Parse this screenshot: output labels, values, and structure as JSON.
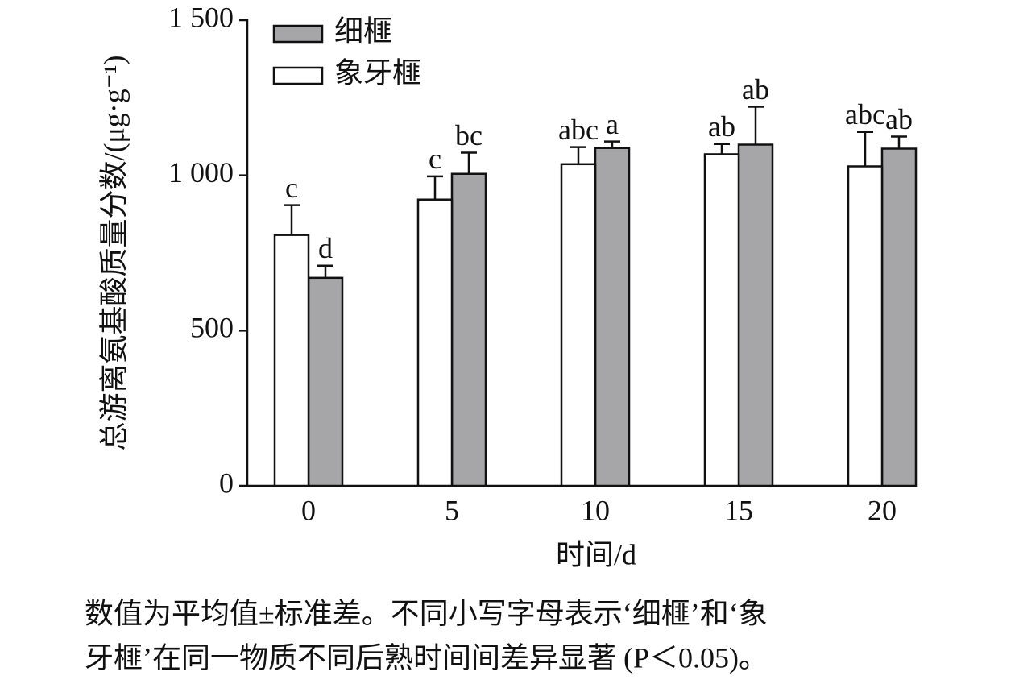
{
  "chart_data": {
    "type": "bar",
    "y_label": "总游离氨基酸质量分数/(μg·g⁻¹)",
    "x_label": "时间/d",
    "categories": [
      "0",
      "5",
      "10",
      "15",
      "20"
    ],
    "series": [
      {
        "name": "细榧",
        "color": "#a6a6a8",
        "values": [
          670,
          1005,
          1088,
          1099,
          1086
        ],
        "errors": [
          39,
          68,
          21,
          122,
          39
        ],
        "labels": [
          "d",
          "bc",
          "a",
          "ab",
          "ab"
        ]
      },
      {
        "name": "象牙榧",
        "color": "#ffffff",
        "values": [
          808,
          922,
          1036,
          1068,
          1029
        ],
        "errors": [
          96,
          75,
          55,
          33,
          111
        ],
        "labels": [
          "c",
          "c",
          "abc",
          "ab",
          "abc"
        ]
      }
    ],
    "ylim": [
      0,
      1500
    ],
    "yticks": [
      0,
      500,
      {
        "value": 1000,
        "label": "1 000"
      },
      {
        "value": 1500,
        "label": "1 500"
      }
    ],
    "notes": [
      "数值为平均值±标准差。不同小写字母表示‘细榧’和‘象",
      "牙榧’在同一物质不同后熟时间间差异显著 (P＜0.05)。"
    ]
  }
}
